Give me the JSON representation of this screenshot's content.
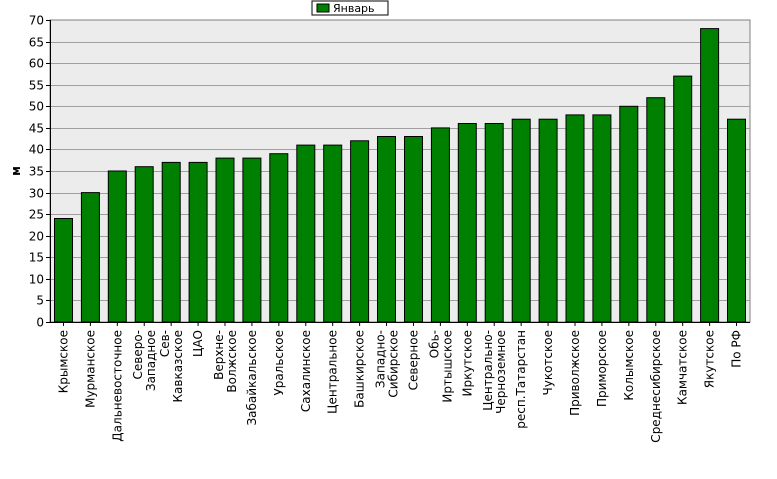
{
  "chart_data": {
    "type": "bar",
    "ylabel": "м",
    "ylim": [
      0,
      70
    ],
    "ytick_step": 5,
    "grid": true,
    "legend_placement": "top-center",
    "bar_color": "#008000",
    "plot_background": "#ececec",
    "categories": [
      "Крымское",
      "Мурманское",
      "Дальневосточное",
      "Северо-Западное",
      "Сев-Кавказское",
      "ЦАО",
      "Верхне-Волжское",
      "Забайкальское",
      "Уральское",
      "Сахалинское",
      "Центральное",
      "Башкирское",
      "Западно-Сибирское",
      "Северное",
      "Обь-Иртышское",
      "Иркутское",
      "Центрально-Черноземное",
      "респ.Татарстан",
      "Чукотское",
      "Приволжское",
      "Приморское",
      "Колымское",
      "Среднесибирское",
      "Камчатское",
      "Якутское",
      "По РФ"
    ],
    "category_lines": [
      [
        "Крымское"
      ],
      [
        "Мурманское"
      ],
      [
        "Дальневосточное"
      ],
      [
        "Северо-",
        "Западное"
      ],
      [
        "Сев-",
        "Кавказское"
      ],
      [
        "ЦАО"
      ],
      [
        "Верхне-",
        "Волжское"
      ],
      [
        "Забайкальское"
      ],
      [
        "Уральское"
      ],
      [
        "Сахалинское"
      ],
      [
        "Центральное"
      ],
      [
        "Башкирское"
      ],
      [
        "Западно-",
        "Сибирское"
      ],
      [
        "Северное"
      ],
      [
        "Обь-",
        "Иртышское"
      ],
      [
        "Иркутское"
      ],
      [
        "Центрально-",
        "Черноземное"
      ],
      [
        "респ.Татарстан"
      ],
      [
        "Чукотское"
      ],
      [
        "Приволжское"
      ],
      [
        "Приморское"
      ],
      [
        "Колымское"
      ],
      [
        "Среднесибирское"
      ],
      [
        "Камчатское"
      ],
      [
        "Якутское"
      ],
      [
        "По РФ"
      ]
    ],
    "series": [
      {
        "name": "Январь",
        "values": [
          24,
          30,
          35,
          36,
          37,
          37,
          38,
          38,
          39,
          41,
          41,
          42,
          43,
          43,
          45,
          46,
          46,
          47,
          47,
          48,
          48,
          50,
          52,
          57,
          68,
          47
        ]
      }
    ]
  }
}
